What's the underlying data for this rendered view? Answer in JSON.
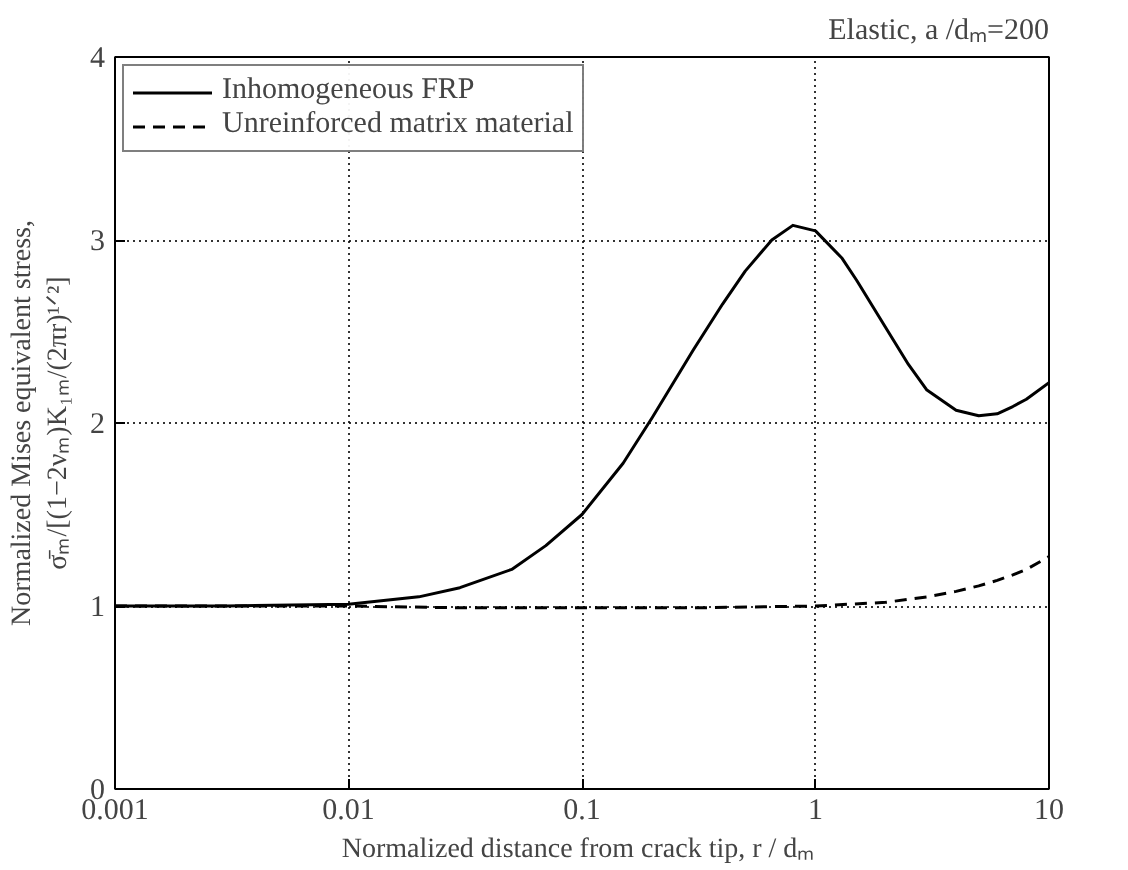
{
  "chart_data": {
    "type": "line",
    "annotations": [
      "Elastic, a /dₘ=200"
    ],
    "xlabel": "Normalized distance from crack tip,  r / dₘ",
    "ylabel": "Normalized Mises equivalent stress,\nσ̄ₘ/[(1−2νₘ)K₁ₘ/(2πr)¹ᐟ²]",
    "log": "x",
    "xlim": [
      0.001,
      10
    ],
    "xticks": [
      0.001,
      0.01,
      0.1,
      1,
      10
    ],
    "ylim": [
      0,
      4
    ],
    "yticks": [
      0,
      1,
      2,
      3,
      4
    ],
    "grid": true,
    "legend": "top left",
    "series": [
      {
        "name": "Inhomogeneous FRP",
        "color": "#000000",
        "line_style": "solid",
        "x": [
          0.001,
          0.003,
          0.01,
          0.02,
          0.03,
          0.05,
          0.07,
          0.1,
          0.15,
          0.2,
          0.3,
          0.4,
          0.5,
          0.65,
          0.8,
          1.0,
          1.3,
          1.5,
          2,
          2.5,
          3,
          4,
          5,
          6,
          7,
          8,
          10
        ],
        "values": [
          1.0,
          1.0,
          1.01,
          1.05,
          1.1,
          1.2,
          1.33,
          1.5,
          1.78,
          2.03,
          2.4,
          2.65,
          2.83,
          3.0,
          3.08,
          3.05,
          2.9,
          2.78,
          2.52,
          2.32,
          2.18,
          2.07,
          2.04,
          2.05,
          2.09,
          2.13,
          2.22
        ]
      },
      {
        "name": "Unreinforced matrix material",
        "color": "#000000",
        "line_style": "dashed",
        "x": [
          0.001,
          0.01,
          0.03,
          0.1,
          0.3,
          1,
          2,
          3,
          4,
          5,
          6,
          7,
          8,
          10
        ],
        "values": [
          1.0,
          1.0,
          0.99,
          0.99,
          0.99,
          1.0,
          1.02,
          1.05,
          1.08,
          1.11,
          1.14,
          1.17,
          1.2,
          1.27
        ]
      }
    ]
  }
}
